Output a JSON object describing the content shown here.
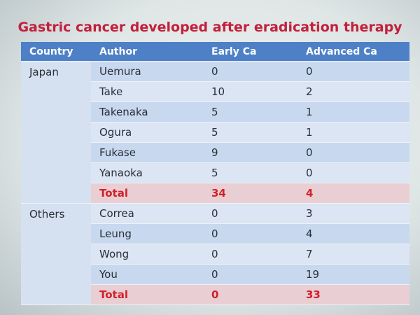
{
  "title": "Gastric cancer developed after eradication therapy",
  "table": {
    "header": [
      "Country",
      "Author",
      "Early Ca",
      "Advanced Ca"
    ],
    "groups": [
      {
        "country": "Japan",
        "rows": [
          [
            "Uemura",
            0,
            0
          ],
          [
            "Take",
            10,
            2
          ],
          [
            "Takenaka",
            5,
            1
          ],
          [
            "Ogura",
            5,
            1
          ],
          [
            "Fukase",
            9,
            0
          ],
          [
            "Yanaoka",
            5,
            0
          ]
        ],
        "total": [
          "Total",
          34,
          4
        ]
      },
      {
        "country": "Others",
        "rows": [
          [
            "Correa",
            0,
            3
          ],
          [
            "Leung",
            0,
            4
          ],
          [
            "Wong",
            0,
            7
          ],
          [
            "You",
            0,
            19
          ]
        ],
        "total": [
          "Total",
          0,
          33
        ]
      }
    ]
  }
}
